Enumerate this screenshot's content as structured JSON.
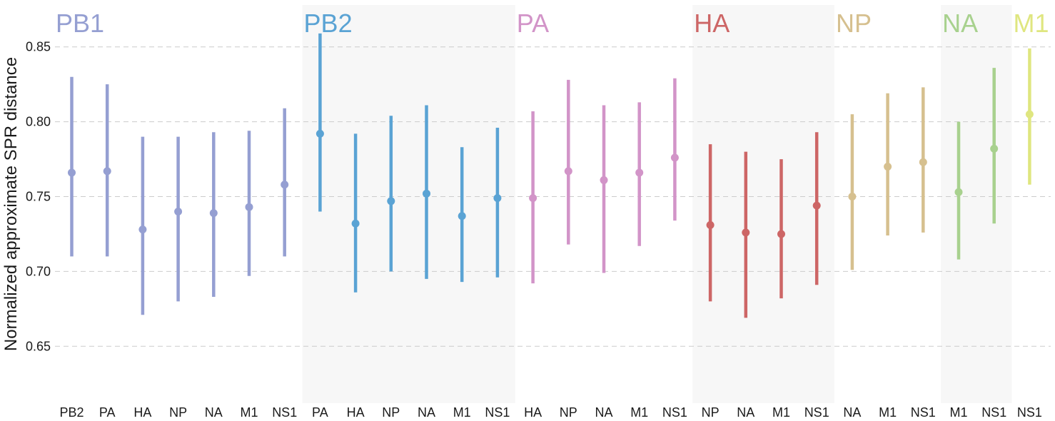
{
  "chart_data": {
    "type": "scatter",
    "subtype": "point-range",
    "title": "",
    "xlabel": "",
    "ylabel": "Normalized approximate SPR distance",
    "ylim": [
      0.612,
      0.878
    ],
    "yticks": [
      "0.65",
      "0.70",
      "0.75",
      "0.80",
      "0.85"
    ],
    "grid": "horizontal dashed",
    "groups": [
      {
        "name": "PB1",
        "color": "#959fd2",
        "shaded": false,
        "points": [
          {
            "x": "PB2",
            "y": 0.766,
            "lo": 0.71,
            "hi": 0.83
          },
          {
            "x": "PA",
            "y": 0.767,
            "lo": 0.71,
            "hi": 0.825
          },
          {
            "x": "HA",
            "y": 0.728,
            "lo": 0.671,
            "hi": 0.79
          },
          {
            "x": "NP",
            "y": 0.74,
            "lo": 0.68,
            "hi": 0.79
          },
          {
            "x": "NA",
            "y": 0.739,
            "lo": 0.683,
            "hi": 0.793
          },
          {
            "x": "M1",
            "y": 0.743,
            "lo": 0.697,
            "hi": 0.794
          },
          {
            "x": "NS1",
            "y": 0.758,
            "lo": 0.71,
            "hi": 0.809
          }
        ]
      },
      {
        "name": "PB2",
        "color": "#5aa3d4",
        "shaded": true,
        "points": [
          {
            "x": "PA",
            "y": 0.792,
            "lo": 0.74,
            "hi": 0.859
          },
          {
            "x": "HA",
            "y": 0.732,
            "lo": 0.686,
            "hi": 0.792
          },
          {
            "x": "NP",
            "y": 0.747,
            "lo": 0.7,
            "hi": 0.804
          },
          {
            "x": "NA",
            "y": 0.752,
            "lo": 0.695,
            "hi": 0.811
          },
          {
            "x": "M1",
            "y": 0.737,
            "lo": 0.693,
            "hi": 0.783
          },
          {
            "x": "NS1",
            "y": 0.749,
            "lo": 0.696,
            "hi": 0.796
          }
        ]
      },
      {
        "name": "PA",
        "color": "#d294c8",
        "shaded": false,
        "points": [
          {
            "x": "HA",
            "y": 0.749,
            "lo": 0.692,
            "hi": 0.807
          },
          {
            "x": "NP",
            "y": 0.767,
            "lo": 0.718,
            "hi": 0.828
          },
          {
            "x": "NA",
            "y": 0.761,
            "lo": 0.699,
            "hi": 0.811
          },
          {
            "x": "M1",
            "y": 0.766,
            "lo": 0.717,
            "hi": 0.813
          },
          {
            "x": "NS1",
            "y": 0.776,
            "lo": 0.734,
            "hi": 0.829
          }
        ]
      },
      {
        "name": "HA",
        "color": "#cd6666",
        "shaded": true,
        "points": [
          {
            "x": "NP",
            "y": 0.731,
            "lo": 0.68,
            "hi": 0.785
          },
          {
            "x": "NA",
            "y": 0.726,
            "lo": 0.669,
            "hi": 0.78
          },
          {
            "x": "M1",
            "y": 0.725,
            "lo": 0.682,
            "hi": 0.775
          },
          {
            "x": "NS1",
            "y": 0.744,
            "lo": 0.691,
            "hi": 0.793
          }
        ]
      },
      {
        "name": "NP",
        "color": "#d6c08f",
        "shaded": false,
        "points": [
          {
            "x": "NA",
            "y": 0.75,
            "lo": 0.701,
            "hi": 0.805
          },
          {
            "x": "M1",
            "y": 0.77,
            "lo": 0.724,
            "hi": 0.819
          },
          {
            "x": "NS1",
            "y": 0.773,
            "lo": 0.726,
            "hi": 0.823
          }
        ]
      },
      {
        "name": "NA",
        "color": "#a8d18e",
        "shaded": true,
        "points": [
          {
            "x": "M1",
            "y": 0.753,
            "lo": 0.708,
            "hi": 0.8
          },
          {
            "x": "NS1",
            "y": 0.782,
            "lo": 0.732,
            "hi": 0.836
          }
        ]
      },
      {
        "name": "M1",
        "color": "#dfe680",
        "shaded": false,
        "points": [
          {
            "x": "NS1",
            "y": 0.805,
            "lo": 0.758,
            "hi": 0.849
          }
        ]
      }
    ]
  }
}
